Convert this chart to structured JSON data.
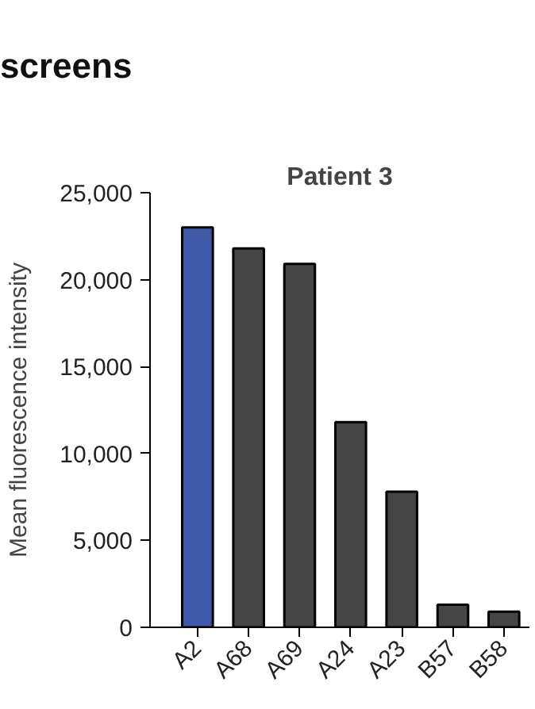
{
  "chart_data": {
    "type": "bar",
    "title": "Patient 3",
    "ylabel": "Mean fluorescence intensity",
    "annotations": [
      "screens"
    ],
    "categories": [
      "A2",
      "A68",
      "A69",
      "A24",
      "A23",
      "B57",
      "B58"
    ],
    "values": [
      23000,
      21800,
      20900,
      11800,
      7800,
      1300,
      900
    ],
    "colors": [
      "#4058a8",
      "#454545",
      "#454545",
      "#454545",
      "#454545",
      "#454545",
      "#454545"
    ],
    "ylim": [
      0,
      25000
    ],
    "yticks": [
      0,
      {
        "value": 5000,
        "label": "5,000"
      },
      {
        "value": 10000,
        "label": "10,000"
      },
      {
        "value": 15000,
        "label": "15,000"
      },
      {
        "value": 20000,
        "label": "20,000"
      },
      {
        "value": 25000,
        "label": "25,000"
      }
    ],
    "grid": false
  }
}
